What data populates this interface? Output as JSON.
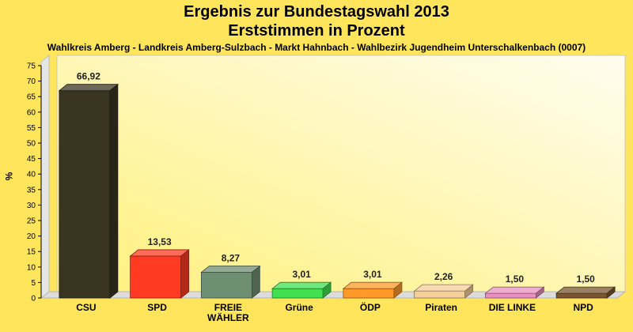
{
  "chart_data": {
    "type": "bar",
    "title": "Ergebnis zur Bundestagswahl 2013",
    "title2": "Erststimmen in Prozent",
    "subtitle": "Wahlkreis Amberg - Landkreis Amberg-Sulzbach - Markt Hahnbach - Wahlbezirk Jugendheim Unterschalkenbach (0007)",
    "ylabel": "%",
    "xlabel": "",
    "ylim": [
      0,
      75
    ],
    "yticks": [
      0,
      5,
      10,
      15,
      20,
      25,
      30,
      35,
      40,
      45,
      50,
      55,
      60,
      65,
      70,
      75
    ],
    "grid": false,
    "categories": [
      [
        "CSU"
      ],
      [
        "SPD"
      ],
      [
        "FREIE",
        "WÄHLER"
      ],
      [
        "Grüne"
      ],
      [
        "ÖDP"
      ],
      [
        "Piraten"
      ],
      [
        "DIE LINKE"
      ],
      [
        "NPD"
      ]
    ],
    "values": [
      66.92,
      13.53,
      8.27,
      3.01,
      3.01,
      2.26,
      1.5,
      1.5
    ],
    "value_labels": [
      "66,92",
      "13,53",
      "8,27",
      "3,01",
      "3,01",
      "2,26",
      "1,50",
      "1,50"
    ],
    "colors": [
      "#3a3520",
      "#ff3a22",
      "#6f8f72",
      "#40e050",
      "#ff9a2a",
      "#f5cf9a",
      "#e890c0",
      "#7a5530"
    ]
  }
}
